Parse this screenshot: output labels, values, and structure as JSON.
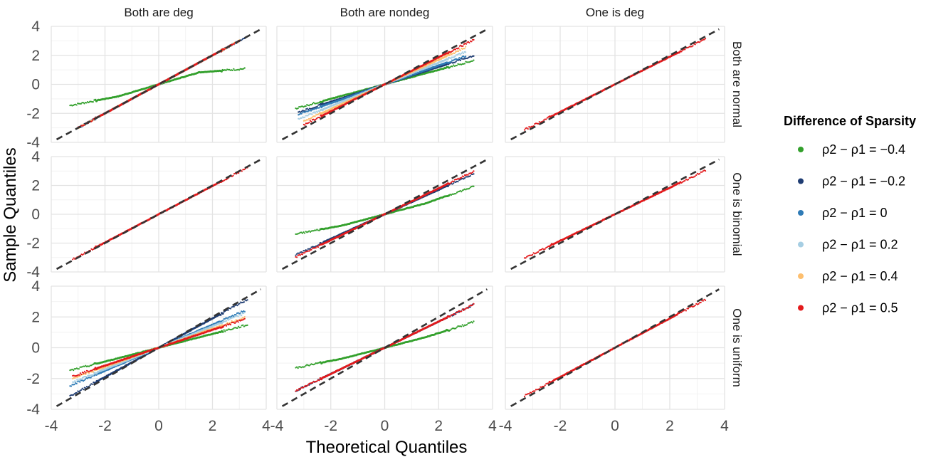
{
  "chart_data": {
    "type": "scatter",
    "xlabel": "Theoretical Quantiles",
    "ylabel": "Sample Quantiles",
    "xlim": [
      -4,
      4
    ],
    "ylim": [
      -4,
      4
    ],
    "x_ticks": [
      "-4",
      "-2",
      "0",
      "2",
      "4"
    ],
    "y_ticks": [
      "4",
      "2",
      "0",
      "-2",
      "-4"
    ],
    "grid": true,
    "reference_line": {
      "style": "dashed",
      "color": "#333333",
      "intercept": 0,
      "slope": 1
    },
    "column_facets": [
      "Both are deg",
      "Both are nondeg",
      "One is deg"
    ],
    "row_facets": [
      "Both are normal",
      "One is binomial",
      "One is uniform"
    ],
    "legend": {
      "title": "Difference of Sparsity",
      "position": "right",
      "entries": [
        {
          "label": "ρ2 − ρ1 = −0.4",
          "color": "#33a02c"
        },
        {
          "label": "ρ2 − ρ1 = −0.2",
          "color": "#1f3d73"
        },
        {
          "label": "ρ2 − ρ1 = 0",
          "color": "#2f7bb6"
        },
        {
          "label": "ρ2 − ρ1 = 0.2",
          "color": "#a6cee3"
        },
        {
          "label": "ρ2 − ρ1 = 0.4",
          "color": "#fdbf6f"
        },
        {
          "label": "ρ2 − ρ1 = 0.5",
          "color": "#e31a1c"
        }
      ]
    },
    "panels": [
      {
        "row": 0,
        "col": 0,
        "series": [
          {
            "legend_index": 0,
            "x_range": [
              -3.3,
              3.2
            ],
            "slope": 0.55,
            "upper_slope": 0.15,
            "lower_slope": 0.35
          },
          {
            "legend_index": 1,
            "x_range": [
              -3.0,
              3.2
            ],
            "slope": 1.0
          },
          {
            "legend_index": 2,
            "x_range": [
              -3.0,
              3.0
            ],
            "slope": 1.0
          },
          {
            "legend_index": 3,
            "x_range": [
              -3.0,
              3.0
            ],
            "slope": 1.0
          },
          {
            "legend_index": 4,
            "x_range": [
              -3.0,
              3.0
            ],
            "slope": 1.0
          },
          {
            "legend_index": 5,
            "x_range": [
              -3.0,
              3.0
            ],
            "slope": 1.0
          }
        ]
      },
      {
        "row": 0,
        "col": 1,
        "series": [
          {
            "legend_index": 0,
            "x_range": [
              -3.3,
              3.3
            ],
            "slope": 0.5
          },
          {
            "legend_index": 1,
            "x_range": [
              -3.2,
              3.3
            ],
            "slope": 0.6
          },
          {
            "legend_index": 2,
            "x_range": [
              -3.2,
              3.0
            ],
            "slope": 0.65
          },
          {
            "legend_index": 3,
            "x_range": [
              -3.2,
              3.0
            ],
            "slope": 0.75
          },
          {
            "legend_index": 4,
            "x_range": [
              -3.0,
              3.0
            ],
            "slope": 0.85
          },
          {
            "legend_index": 5,
            "x_range": [
              -3.0,
              3.3
            ],
            "slope": 0.93
          }
        ]
      },
      {
        "row": 0,
        "col": 2,
        "series": [
          {
            "legend_index": 5,
            "x_range": [
              -3.3,
              3.3
            ],
            "slope": 0.95
          }
        ]
      },
      {
        "row": 1,
        "col": 0,
        "series": [
          {
            "legend_index": 5,
            "x_range": [
              -3.2,
              3.3
            ],
            "slope": 0.98
          }
        ]
      },
      {
        "row": 1,
        "col": 1,
        "series": [
          {
            "legend_index": 0,
            "x_range": [
              -3.3,
              3.3
            ],
            "slope": 0.5,
            "upper_slope": 0.65,
            "lower_slope": 0.35
          },
          {
            "legend_index": 1,
            "x_range": [
              -3.3,
              3.3
            ],
            "slope": 0.85
          },
          {
            "legend_index": 5,
            "x_range": [
              -3.3,
              3.3
            ],
            "slope": 0.9
          }
        ]
      },
      {
        "row": 1,
        "col": 2,
        "series": [
          {
            "legend_index": 5,
            "x_range": [
              -3.3,
              3.3
            ],
            "slope": 0.92
          }
        ]
      },
      {
        "row": 2,
        "col": 0,
        "series": [
          {
            "legend_index": 0,
            "x_range": [
              -3.3,
              3.3
            ],
            "slope": 0.45
          },
          {
            "legend_index": 1,
            "x_range": [
              -3.3,
              3.3
            ],
            "slope": 0.95
          },
          {
            "legend_index": 2,
            "x_range": [
              -3.3,
              3.2
            ],
            "slope": 0.75
          },
          {
            "legend_index": 3,
            "x_range": [
              -3.2,
              3.2
            ],
            "slope": 0.7
          },
          {
            "legend_index": 4,
            "x_range": [
              -3.2,
              3.2
            ],
            "slope": 0.62
          },
          {
            "legend_index": 5,
            "x_range": [
              -3.2,
              3.2
            ],
            "slope": 0.58
          }
        ]
      },
      {
        "row": 2,
        "col": 1,
        "series": [
          {
            "legend_index": 0,
            "x_range": [
              -3.3,
              3.3
            ],
            "slope": 0.45,
            "upper_slope": 0.55,
            "lower_slope": 0.35
          },
          {
            "legend_index": 1,
            "x_range": [
              -3.3,
              3.3
            ],
            "slope": 0.85
          },
          {
            "legend_index": 5,
            "x_range": [
              -3.3,
              3.3
            ],
            "slope": 0.85
          }
        ]
      },
      {
        "row": 2,
        "col": 2,
        "series": [
          {
            "legend_index": 5,
            "x_range": [
              -3.3,
              3.3
            ],
            "slope": 0.95
          }
        ]
      }
    ]
  }
}
